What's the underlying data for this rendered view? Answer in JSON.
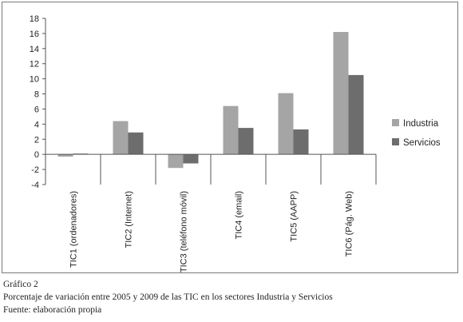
{
  "chart_data": {
    "type": "bar",
    "categories": [
      "TIC1 (ordenadores)",
      "TIC2 (Internet)",
      "TIC3 (teléfono móvil)",
      "TIC4 (email)",
      "TIC5 (AAPP)",
      "TIC6 (Pág. Web)"
    ],
    "series": [
      {
        "name": "Industria",
        "values": [
          -0.3,
          4.4,
          -1.8,
          6.4,
          8.1,
          16.2
        ],
        "color": "#a5a5a5"
      },
      {
        "name": "Servicios",
        "values": [
          0.1,
          2.9,
          -1.2,
          3.5,
          3.3,
          10.5
        ],
        "color": "#6d6d6d"
      }
    ],
    "yticks": [
      18,
      16,
      14,
      12,
      10,
      8,
      6,
      4,
      2,
      0,
      -2,
      -4
    ],
    "ylim": [
      -4,
      18
    ],
    "grid": false,
    "legend_position": "right"
  },
  "caption": {
    "figure_label": "Gráfico 2",
    "description": "Porcentaje de variación entre 2005 y 2009 de las TIC en los sectores Industria y Servicios",
    "source": "Fuente: elaboración propia"
  }
}
